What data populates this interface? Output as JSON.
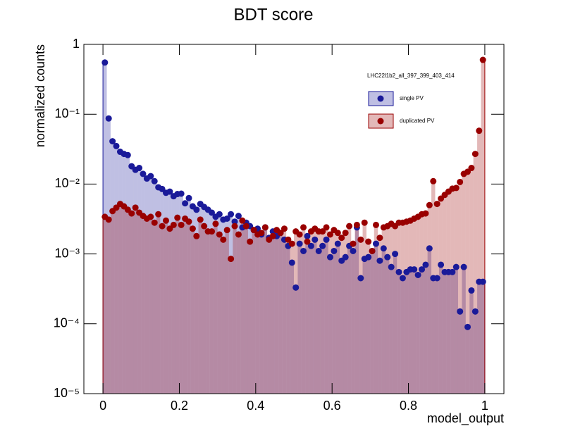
{
  "chart_data": {
    "type": "histogram",
    "title": "BDT score",
    "x_label": "model_output",
    "y_label": "normalized counts",
    "legend_title": "LHC22l1b2_all_397_399_403_414",
    "legend_position": "top-right",
    "log_y": true,
    "grid": false,
    "xlim": [
      -0.05,
      1.05
    ],
    "xticks": [
      0,
      0.2,
      0.4,
      0.6,
      0.8,
      1
    ],
    "ylim": [
      1e-05,
      1
    ],
    "yticks": [
      {
        "value": 1e-05,
        "label": "10⁻⁵"
      },
      {
        "value": 0.0001,
        "label": "10⁻⁴"
      },
      {
        "value": 0.001,
        "label": "10⁻³"
      },
      {
        "value": 0.01,
        "label": "10⁻²"
      },
      {
        "value": 0.1,
        "label": "10⁻¹"
      },
      1
    ],
    "bins": [
      0,
      0.01,
      0.02,
      0.03,
      0.04,
      0.05,
      0.06,
      0.07,
      0.08,
      0.09,
      0.1,
      0.11,
      0.12,
      0.13,
      0.14,
      0.15,
      0.16,
      0.17,
      0.18,
      0.19,
      0.2,
      0.21,
      0.22,
      0.23,
      0.24,
      0.25,
      0.26,
      0.27,
      0.28,
      0.29,
      0.3,
      0.31,
      0.32,
      0.33,
      0.34,
      0.35,
      0.36,
      0.37,
      0.38,
      0.39,
      0.4,
      0.41,
      0.42,
      0.43,
      0.44,
      0.45,
      0.46,
      0.47,
      0.48,
      0.49,
      0.5,
      0.51,
      0.52,
      0.53,
      0.54,
      0.55,
      0.56,
      0.57,
      0.58,
      0.59,
      0.6,
      0.61,
      0.62,
      0.63,
      0.64,
      0.65,
      0.66,
      0.67,
      0.68,
      0.69,
      0.7,
      0.71,
      0.72,
      0.73,
      0.74,
      0.75,
      0.76,
      0.77,
      0.78,
      0.79,
      0.8,
      0.81,
      0.82,
      0.83,
      0.84,
      0.85,
      0.86,
      0.87,
      0.88,
      0.89,
      0.9,
      0.91,
      0.92,
      0.93,
      0.94,
      0.95,
      0.96,
      0.97,
      0.98,
      0.99,
      1
    ],
    "series": [
      {
        "name": "single PV",
        "color": "#1a1a99",
        "values": [
          0.55,
          0.087,
          0.041,
          0.035,
          0.029,
          0.027,
          0.026,
          0.018,
          0.016,
          0.017,
          0.014,
          0.012,
          0.013,
          0.011,
          0.009,
          0.0085,
          0.0075,
          0.0078,
          0.0067,
          0.0072,
          0.0073,
          0.0053,
          0.0063,
          0.0048,
          0.0043,
          0.0052,
          0.0047,
          0.0043,
          0.0039,
          0.0034,
          0.0037,
          0.0031,
          0.0032,
          0.0037,
          0.0029,
          0.0035,
          0.0024,
          0.0028,
          0.0025,
          0.0022,
          0.0023,
          0.0019,
          0.0024,
          0.0017,
          0.0021,
          0.0018,
          0.002,
          0.0016,
          0.0013,
          0.00075,
          0.00033,
          0.0014,
          0.0011,
          0.0018,
          0.0013,
          0.0016,
          0.0011,
          0.0013,
          0.0016,
          0.0009,
          0.0011,
          0.0014,
          0.0008,
          0.0009,
          0.0013,
          0.0011,
          0.0024,
          0.00045,
          0.00085,
          0.0009,
          0.0011,
          0.0014,
          0.0008,
          0.0012,
          0.0009,
          0.00065,
          0.001,
          0.00055,
          0.00045,
          0.00055,
          0.0006,
          0.0006,
          0.0005,
          0.0006,
          0.0007,
          0.0012,
          0.00045,
          0.00045,
          0.0007,
          0.00055,
          0.00055,
          0.00055,
          0.00065,
          0.00015,
          0.00065,
          9e-05,
          0.0003,
          0.00015,
          0.0004,
          0.0004
        ]
      },
      {
        "name": "duplicated PV",
        "color": "#990000",
        "values": [
          0.0034,
          0.0031,
          0.0041,
          0.0046,
          0.0052,
          0.0048,
          0.0043,
          0.0038,
          0.0046,
          0.0039,
          0.0035,
          0.0032,
          0.0034,
          0.0028,
          0.0037,
          0.0025,
          0.003,
          0.0023,
          0.0026,
          0.0033,
          0.0026,
          0.0032,
          0.0029,
          0.0023,
          0.0018,
          0.0031,
          0.0025,
          0.0021,
          0.0021,
          0.0027,
          0.0019,
          0.0016,
          0.0022,
          0.00085,
          0.0025,
          0.0019,
          0.003,
          0.0025,
          0.0015,
          0.0022,
          0.0019,
          0.002,
          0.0024,
          0.0016,
          0.0018,
          0.0022,
          0.002,
          0.0023,
          0.0016,
          0.0014,
          0.0021,
          0.0019,
          0.0024,
          0.0015,
          0.0021,
          0.0023,
          0.0021,
          0.0021,
          0.0024,
          0.0019,
          0.0022,
          0.002,
          0.0017,
          0.002,
          0.0025,
          0.0014,
          0.0026,
          0.0016,
          0.0028,
          0.0015,
          0.0011,
          0.0026,
          0.0017,
          0.0024,
          0.0025,
          0.0027,
          0.0025,
          0.0028,
          0.0028,
          0.0029,
          0.003,
          0.0032,
          0.0034,
          0.0037,
          0.0038,
          0.005,
          0.011,
          0.0052,
          0.0062,
          0.007,
          0.0078,
          0.0086,
          0.0088,
          0.0107,
          0.014,
          0.015,
          0.017,
          0.027,
          0.058,
          0.6
        ]
      }
    ]
  }
}
